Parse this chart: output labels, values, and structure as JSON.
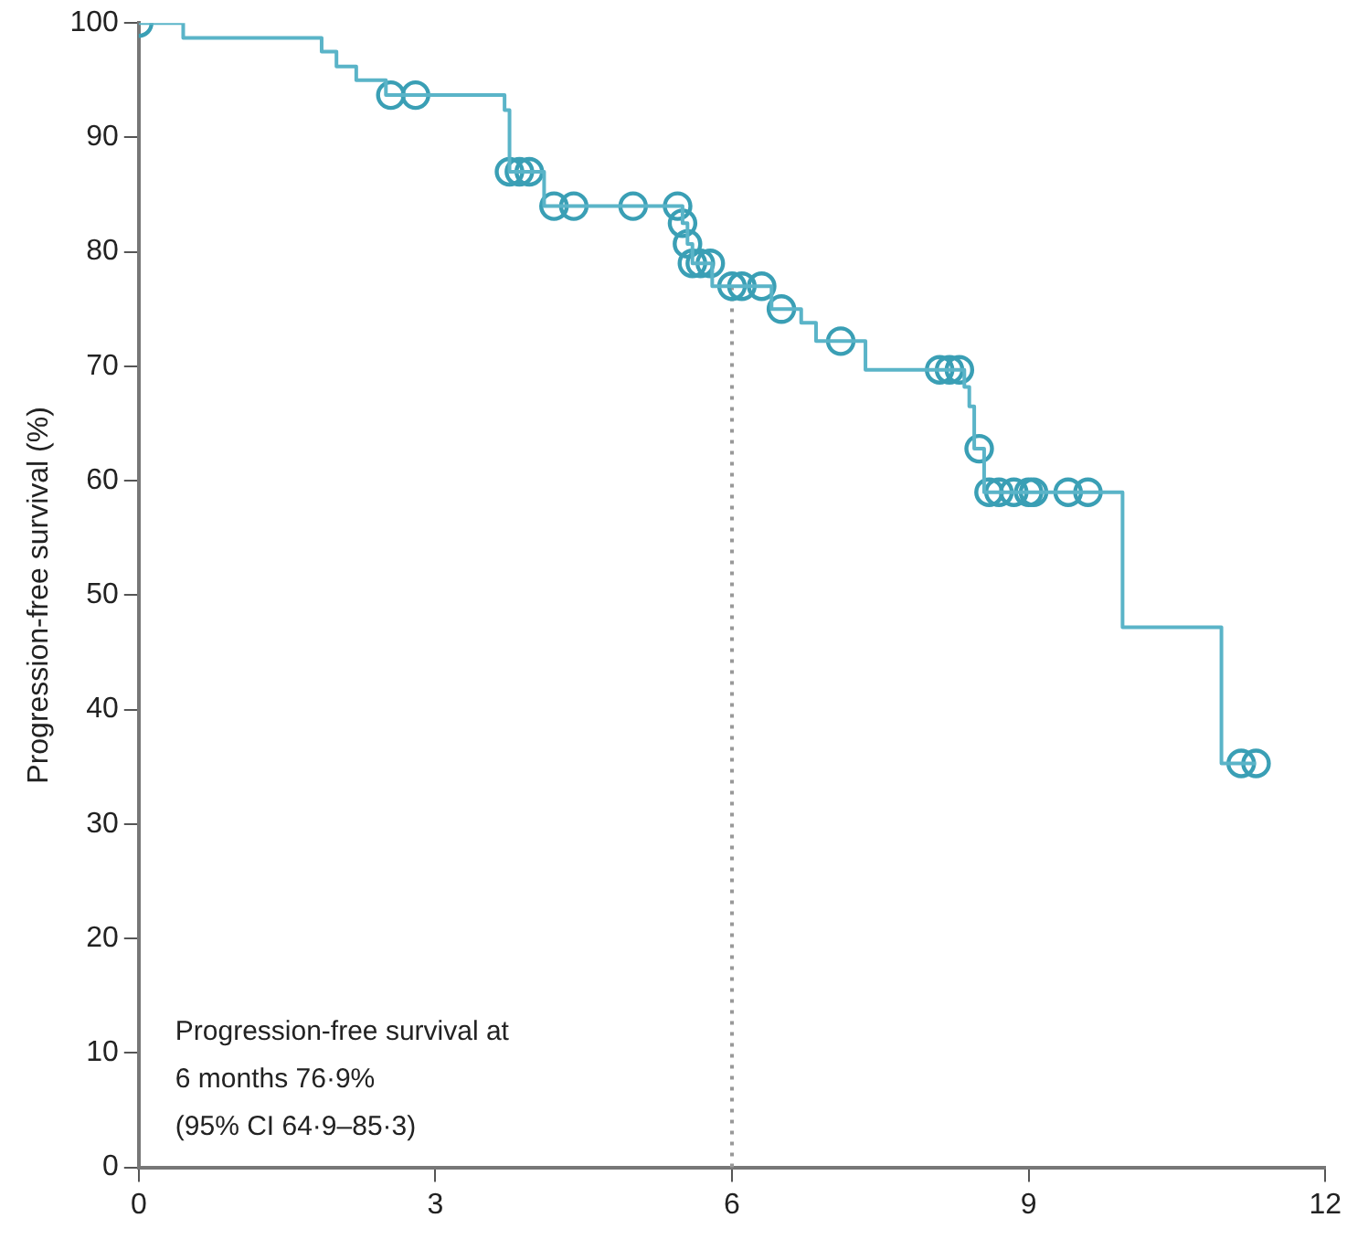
{
  "chart_data": {
    "type": "step",
    "ylabel": "Progression-free survival (%)",
    "xlim": [
      0,
      12
    ],
    "xticks": [
      0,
      3,
      6,
      9,
      12
    ],
    "ylim": [
      0,
      100
    ],
    "yticks": [
      0,
      10,
      20,
      30,
      40,
      50,
      60,
      70,
      80,
      90,
      100
    ],
    "grid": false,
    "legend": false,
    "series": [
      {
        "color": "#5ab4c8",
        "marker": "none",
        "x": [
          0,
          0.45,
          1.85,
          2.0,
          2.2,
          2.5,
          3.7,
          3.75,
          4.1,
          5.5,
          5.55,
          5.6,
          5.8,
          6.4,
          6.7,
          6.85,
          7.35,
          8.35,
          8.4,
          8.45,
          8.55,
          9.95,
          10.95,
          11.3
        ],
        "values": [
          100,
          98.7,
          97.5,
          96.2,
          95,
          93.7,
          92.4,
          87,
          84,
          82.5,
          80.7,
          79,
          77,
          75,
          73.8,
          72.2,
          69.7,
          68.2,
          66.5,
          62.8,
          59,
          47.2,
          35.3,
          35.3
        ]
      },
      {
        "type": "scatter",
        "color": "#3a9fb5",
        "marker": "circle",
        "x": [
          0,
          2.55,
          2.8,
          3.75,
          3.85,
          3.95,
          4.2,
          4.4,
          5.0,
          5.45,
          5.5,
          5.55,
          5.6,
          5.68,
          5.78,
          6.0,
          6.1,
          6.3,
          6.5,
          7.1,
          8.1,
          8.2,
          8.3,
          8.5,
          8.6,
          8.7,
          8.85,
          9.0,
          9.05,
          9.4,
          9.6,
          11.15,
          11.3
        ],
        "values": [
          100,
          93.7,
          93.7,
          87,
          87,
          87,
          84,
          84,
          84,
          84,
          82.5,
          80.7,
          79,
          79,
          79,
          77,
          77,
          77,
          75,
          72.2,
          69.7,
          69.7,
          69.7,
          62.8,
          59,
          59,
          59,
          59,
          59,
          59,
          59,
          35.3,
          35.3
        ]
      }
    ],
    "ref_lines": [
      {
        "axis": "x",
        "value": 6,
        "color": "#999999",
        "line_style": "dotted"
      }
    ],
    "annotations": [
      "Progression-free survival at\n6 months 76·9%\n(95% CI 64·9–85·3)"
    ]
  }
}
